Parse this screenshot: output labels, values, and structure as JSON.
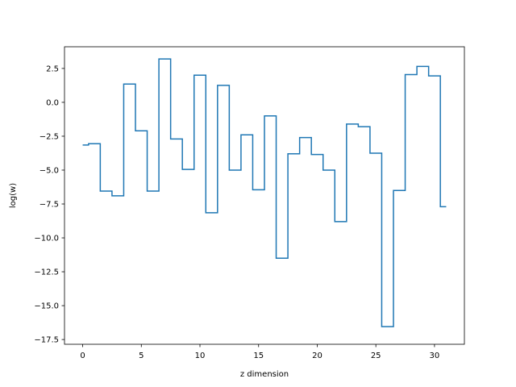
{
  "chart_data": {
    "type": "line",
    "drawstyle": "steps-mid",
    "title": "",
    "xlabel": "z dimension",
    "ylabel": "log(w)",
    "xlim": [
      -1.55,
      32.55
    ],
    "ylim": [
      -17.85,
      4.1
    ],
    "grid": false,
    "line_color": "#1f77b4",
    "x": [
      0,
      1,
      2,
      3,
      4,
      5,
      6,
      7,
      8,
      9,
      10,
      11,
      12,
      13,
      14,
      15,
      16,
      17,
      18,
      19,
      20,
      21,
      22,
      23,
      24,
      25,
      26,
      27,
      28,
      29,
      30,
      31
    ],
    "y": [
      -3.15,
      -3.05,
      -6.55,
      -6.9,
      1.35,
      -2.1,
      -6.55,
      3.2,
      -2.7,
      -4.95,
      2.0,
      -8.15,
      1.25,
      -5.0,
      -2.4,
      -6.45,
      -1.0,
      -11.5,
      -3.8,
      -2.6,
      -3.85,
      -5.0,
      -8.8,
      -1.6,
      -1.8,
      -3.75,
      -16.55,
      -6.5,
      2.05,
      2.65,
      1.95,
      -7.7
    ],
    "x_ticks": [
      0,
      5,
      10,
      15,
      20,
      25,
      30
    ],
    "x_tick_labels": [
      "0",
      "5",
      "10",
      "15",
      "20",
      "25",
      "30"
    ],
    "y_ticks": [
      2.5,
      0,
      -2.5,
      -5,
      -7.5,
      -10,
      -12.5,
      -15,
      -17.5
    ],
    "y_tick_labels": [
      "2.5",
      "0.0",
      "−2.5",
      "−5.0",
      "−7.5",
      "−10.0",
      "−12.5",
      "−15.0",
      "−17.5"
    ]
  }
}
